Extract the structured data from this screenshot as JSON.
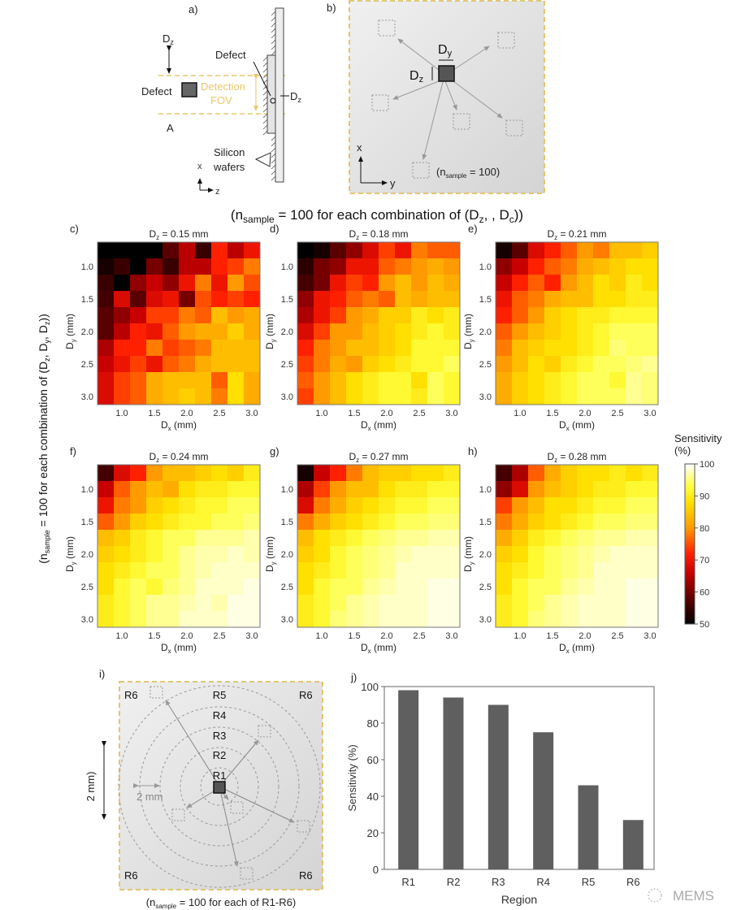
{
  "panel_labels": {
    "a": "a)",
    "b": "b)",
    "c": "c)",
    "d": "d)",
    "e": "e)",
    "f": "f)",
    "g": "g)",
    "h": "h)",
    "i": "i)",
    "j": "j)"
  },
  "panel_a": {
    "dz_top": {
      "d": "D",
      "sub": "z"
    },
    "defect_left": "Defect",
    "detection": "Detection",
    "fov": "FOV",
    "defect_top": "Defect",
    "dz_right": {
      "d": "D",
      "sub": "z"
    },
    "a_label": "A",
    "silicon": "Silicon",
    "wafers": "wafers",
    "axis_x": "x",
    "axis_z": "z",
    "fov_color": "#e8c66a"
  },
  "panel_b": {
    "dy": {
      "d": "D",
      "sub": "y"
    },
    "dz": {
      "d": "D",
      "sub": "z"
    },
    "axis_x": "x",
    "axis_y": "y",
    "n_note": {
      "open": "(n",
      "sub": "sample",
      "rest": " = 100)"
    }
  },
  "caption_top": {
    "open": "(n",
    "sub": "sample",
    "mid": " = 100 for each combination of (D",
    "sub2": "z",
    "rest": ", , D",
    "sub3": "c",
    "close": "))"
  },
  "caption_left": {
    "open": "(n",
    "sub": "sample",
    "mid": " = 100 for each combination of (D",
    "s1": "z",
    "c1": ", D",
    "s2": "y",
    "c2": ", D",
    "s3": "z",
    "close": "))"
  },
  "colorbar": {
    "title1": "Sensitivity",
    "title2": "(%)",
    "ticks": [
      "100",
      "90",
      "80",
      "70",
      "60",
      "50"
    ],
    "range": [
      50,
      100
    ],
    "colormap": "hot"
  },
  "chart_data": [
    {
      "type": "heatmap",
      "panel": "c)",
      "title": {
        "d": "D",
        "sub": "z",
        "rest": " = 0.15 mm"
      },
      "xlabel": {
        "d": "D",
        "sub": "x",
        "rest": " (mm)"
      },
      "ylabel": {
        "d": "D",
        "sub": "y",
        "rest": " (mm)"
      },
      "x": [
        0.75,
        1.0,
        1.25,
        1.5,
        1.75,
        2.0,
        2.25,
        2.5,
        2.75,
        3.0
      ],
      "y": [
        0.75,
        1.0,
        1.25,
        1.5,
        1.75,
        2.0,
        2.25,
        2.5,
        2.75,
        3.0
      ],
      "xticks": [
        "1.0",
        "1.5",
        "2.0",
        "2.5",
        "3.0"
      ],
      "yticks": [
        "1.0",
        "1.5",
        "2.0",
        "2.5",
        "3.0"
      ],
      "values": [
        [
          50,
          50,
          50,
          50,
          58,
          65,
          55,
          72,
          65,
          70
        ],
        [
          52,
          55,
          50,
          60,
          55,
          65,
          65,
          72,
          74,
          78
        ],
        [
          55,
          50,
          62,
          66,
          62,
          70,
          78,
          70,
          80,
          75
        ],
        [
          56,
          68,
          58,
          68,
          70,
          60,
          75,
          72,
          74,
          72
        ],
        [
          58,
          62,
          66,
          74,
          74,
          78,
          76,
          84,
          80,
          82
        ],
        [
          58,
          65,
          72,
          70,
          76,
          80,
          82,
          82,
          86,
          82
        ],
        [
          64,
          72,
          72,
          78,
          74,
          76,
          78,
          84,
          84,
          84
        ],
        [
          66,
          70,
          74,
          70,
          76,
          78,
          82,
          84,
          84,
          84
        ],
        [
          68,
          74,
          76,
          82,
          84,
          84,
          84,
          76,
          88,
          82
        ],
        [
          68,
          74,
          76,
          82,
          84,
          86,
          84,
          78,
          88,
          82
        ]
      ]
    },
    {
      "type": "heatmap",
      "panel": "d)",
      "title": {
        "d": "D",
        "sub": "z",
        "rest": " = 0.18 mm"
      },
      "xlabel": {
        "d": "D",
        "sub": "x",
        "rest": " (mm)"
      },
      "ylabel": {
        "d": "D",
        "sub": "y",
        "rest": " (mm)"
      },
      "x": [
        0.75,
        1.0,
        1.25,
        1.5,
        1.75,
        2.0,
        2.25,
        2.5,
        2.75,
        3.0
      ],
      "y": [
        0.75,
        1.0,
        1.25,
        1.5,
        1.75,
        2.0,
        2.25,
        2.5,
        2.75,
        3.0
      ],
      "xticks": [
        "1.0",
        "1.5",
        "2.0",
        "2.5",
        "3.0"
      ],
      "yticks": [
        "1.0",
        "1.5",
        "2.0",
        "2.5",
        "3.0"
      ],
      "values": [
        [
          50,
          52,
          58,
          62,
          68,
          74,
          70,
          78,
          76,
          76
        ],
        [
          54,
          60,
          62,
          70,
          70,
          76,
          78,
          80,
          82,
          80
        ],
        [
          56,
          60,
          70,
          74,
          72,
          80,
          84,
          80,
          84,
          82
        ],
        [
          62,
          70,
          72,
          76,
          78,
          76,
          84,
          82,
          84,
          84
        ],
        [
          64,
          70,
          74,
          80,
          82,
          86,
          86,
          90,
          88,
          90
        ],
        [
          68,
          74,
          80,
          80,
          84,
          86,
          88,
          90,
          92,
          90
        ],
        [
          72,
          78,
          80,
          84,
          84,
          86,
          88,
          92,
          92,
          92
        ],
        [
          74,
          78,
          82,
          80,
          86,
          88,
          90,
          92,
          92,
          94
        ],
        [
          76,
          80,
          84,
          88,
          90,
          92,
          92,
          88,
          94,
          92
        ],
        [
          74,
          80,
          84,
          88,
          90,
          92,
          92,
          90,
          94,
          92
        ]
      ]
    },
    {
      "type": "heatmap",
      "panel": "e)",
      "title": {
        "d": "D",
        "sub": "z",
        "rest": " = 0.21 mm"
      },
      "xlabel": {
        "d": "D",
        "sub": "x",
        "rest": " (mm)"
      },
      "ylabel": {
        "d": "D",
        "sub": "y",
        "rest": " (mm)"
      },
      "x": [
        0.75,
        1.0,
        1.25,
        1.5,
        1.75,
        2.0,
        2.25,
        2.5,
        2.75,
        3.0
      ],
      "y": [
        0.75,
        1.0,
        1.25,
        1.5,
        1.75,
        2.0,
        2.25,
        2.5,
        2.75,
        3.0
      ],
      "xticks": [
        "1.0",
        "1.5",
        "2.0",
        "2.5",
        "3.0"
      ],
      "yticks": [
        "1.0",
        "1.5",
        "2.0",
        "2.5",
        "3.0"
      ],
      "values": [
        [
          52,
          58,
          68,
          72,
          76,
          80,
          78,
          84,
          84,
          86
        ],
        [
          62,
          66,
          72,
          76,
          78,
          82,
          84,
          86,
          88,
          88
        ],
        [
          66,
          72,
          76,
          72,
          80,
          84,
          88,
          86,
          90,
          88
        ],
        [
          70,
          76,
          78,
          82,
          84,
          84,
          88,
          88,
          90,
          90
        ],
        [
          72,
          76,
          80,
          86,
          88,
          90,
          90,
          92,
          92,
          92
        ],
        [
          76,
          80,
          84,
          86,
          88,
          90,
          92,
          94,
          94,
          94
        ],
        [
          78,
          84,
          86,
          88,
          88,
          90,
          92,
          95,
          94,
          94
        ],
        [
          80,
          84,
          88,
          86,
          90,
          92,
          94,
          94,
          95,
          96
        ],
        [
          82,
          86,
          88,
          90,
          92,
          94,
          94,
          92,
          96,
          95
        ],
        [
          82,
          86,
          88,
          90,
          92,
          94,
          94,
          94,
          96,
          95
        ]
      ]
    },
    {
      "type": "heatmap",
      "panel": "f)",
      "title": {
        "d": "D",
        "sub": "z",
        "rest": " = 0.24 mm"
      },
      "xlabel": {
        "d": "D",
        "sub": "x",
        "rest": " (mm)"
      },
      "ylabel": {
        "d": "D",
        "sub": "y",
        "rest": " (mm)"
      },
      "x": [
        0.75,
        1.0,
        1.25,
        1.5,
        1.75,
        2.0,
        2.25,
        2.5,
        2.75,
        3.0
      ],
      "y": [
        0.75,
        1.0,
        1.25,
        1.5,
        1.75,
        2.0,
        2.25,
        2.5,
        2.75,
        3.0
      ],
      "xticks": [
        "1.0",
        "1.5",
        "2.0",
        "2.5",
        "3.0"
      ],
      "yticks": [
        "1.0",
        "1.5",
        "2.0",
        "2.5",
        "3.0"
      ],
      "values": [
        [
          56,
          68,
          72,
          80,
          84,
          84,
          86,
          88,
          86,
          90
        ],
        [
          66,
          76,
          80,
          84,
          82,
          88,
          90,
          90,
          92,
          92
        ],
        [
          70,
          78,
          80,
          86,
          88,
          90,
          92,
          92,
          94,
          94
        ],
        [
          76,
          80,
          86,
          88,
          90,
          92,
          92,
          94,
          94,
          95
        ],
        [
          84,
          86,
          90,
          92,
          94,
          94,
          96,
          96,
          96,
          97
        ],
        [
          86,
          88,
          90,
          92,
          94,
          96,
          97,
          97,
          98,
          97
        ],
        [
          88,
          90,
          92,
          94,
          94,
          96,
          97,
          98,
          98,
          98
        ],
        [
          88,
          92,
          94,
          92,
          95,
          96,
          98,
          98,
          98,
          99
        ],
        [
          90,
          92,
          94,
          96,
          96,
          97,
          98,
          97,
          99,
          99
        ],
        [
          90,
          92,
          94,
          96,
          96,
          98,
          98,
          98,
          99,
          99
        ]
      ]
    },
    {
      "type": "heatmap",
      "panel": "g)",
      "title": {
        "d": "D",
        "sub": "z",
        "rest": " = 0.27 mm"
      },
      "xlabel": {
        "d": "D",
        "sub": "x",
        "rest": " (mm)"
      },
      "ylabel": {
        "d": "D",
        "sub": "y",
        "rest": " (mm)"
      },
      "x": [
        0.75,
        1.0,
        1.25,
        1.5,
        1.75,
        2.0,
        2.25,
        2.5,
        2.75,
        3.0
      ],
      "y": [
        0.75,
        1.0,
        1.25,
        1.5,
        1.75,
        2.0,
        2.25,
        2.5,
        2.75,
        3.0
      ],
      "xticks": [
        "1.0",
        "1.5",
        "2.0",
        "2.5",
        "3.0"
      ],
      "yticks": [
        "1.0",
        "1.5",
        "2.0",
        "2.5",
        "3.0"
      ],
      "values": [
        [
          52,
          66,
          72,
          78,
          84,
          86,
          86,
          88,
          88,
          90
        ],
        [
          64,
          74,
          80,
          84,
          84,
          88,
          90,
          90,
          92,
          92
        ],
        [
          68,
          78,
          82,
          86,
          88,
          90,
          92,
          92,
          94,
          94
        ],
        [
          78,
          82,
          86,
          88,
          90,
          92,
          94,
          94,
          95,
          95
        ],
        [
          84,
          88,
          90,
          92,
          94,
          95,
          96,
          96,
          97,
          97
        ],
        [
          86,
          88,
          92,
          94,
          95,
          96,
          97,
          98,
          98,
          98
        ],
        [
          88,
          90,
          92,
          94,
          95,
          96,
          98,
          98,
          98,
          98
        ],
        [
          88,
          92,
          94,
          94,
          96,
          97,
          98,
          98,
          99,
          99
        ],
        [
          90,
          92,
          94,
          96,
          97,
          98,
          98,
          98,
          99,
          99
        ],
        [
          90,
          92,
          95,
          96,
          97,
          98,
          98,
          98,
          99,
          99
        ]
      ]
    },
    {
      "type": "heatmap",
      "panel": "h)",
      "title": {
        "d": "D",
        "sub": "z",
        "rest": " = 0.28 mm"
      },
      "xlabel": {
        "d": "D",
        "sub": "x",
        "rest": " (mm)"
      },
      "ylabel": {
        "d": "D",
        "sub": "y",
        "rest": " (mm)"
      },
      "x": [
        0.75,
        1.0,
        1.25,
        1.5,
        1.75,
        2.0,
        2.25,
        2.5,
        2.75,
        3.0
      ],
      "y": [
        0.75,
        1.0,
        1.25,
        1.5,
        1.75,
        2.0,
        2.25,
        2.5,
        2.75,
        3.0
      ],
      "xticks": [
        "1.0",
        "1.5",
        "2.0",
        "2.5",
        "3.0"
      ],
      "yticks": [
        "1.0",
        "1.5",
        "2.0",
        "2.5",
        "3.0"
      ],
      "values": [
        [
          56,
          64,
          76,
          82,
          86,
          88,
          88,
          90,
          88,
          90
        ],
        [
          62,
          68,
          80,
          84,
          86,
          88,
          90,
          90,
          92,
          92
        ],
        [
          74,
          80,
          84,
          88,
          88,
          90,
          92,
          92,
          94,
          94
        ],
        [
          78,
          82,
          86,
          88,
          90,
          92,
          94,
          94,
          95,
          95
        ],
        [
          82,
          86,
          90,
          92,
          94,
          95,
          96,
          96,
          97,
          97
        ],
        [
          86,
          88,
          92,
          94,
          95,
          96,
          97,
          98,
          98,
          98
        ],
        [
          88,
          90,
          92,
          94,
          95,
          96,
          98,
          98,
          98,
          98
        ],
        [
          88,
          92,
          94,
          94,
          96,
          97,
          98,
          98,
          99,
          99
        ],
        [
          90,
          92,
          94,
          96,
          97,
          98,
          98,
          98,
          99,
          99
        ],
        [
          90,
          92,
          95,
          96,
          97,
          98,
          98,
          98,
          99,
          99
        ]
      ]
    },
    {
      "type": "bar",
      "panel": "j)",
      "categories": [
        "R1",
        "R2",
        "R3",
        "R4",
        "R5",
        "R6"
      ],
      "values": [
        98,
        94,
        90,
        75,
        46,
        27
      ],
      "xlabel": "Region",
      "ylabel": "Sensitivity (%)",
      "ylim": [
        0,
        100
      ],
      "yticks": [
        "0",
        "20",
        "40",
        "60",
        "80",
        "100"
      ],
      "bar_color": "#5f5f5f"
    }
  ],
  "panel_i": {
    "regions": [
      "R1",
      "R2",
      "R3",
      "R4",
      "R5"
    ],
    "corner": "R6",
    "scale_left": "2 mm)",
    "scale_inner": "2 mm",
    "n_note": {
      "open": "(n",
      "sub": "sample",
      "rest": " = 100 for each of R1-R6)"
    }
  },
  "watermark": "MEMS"
}
